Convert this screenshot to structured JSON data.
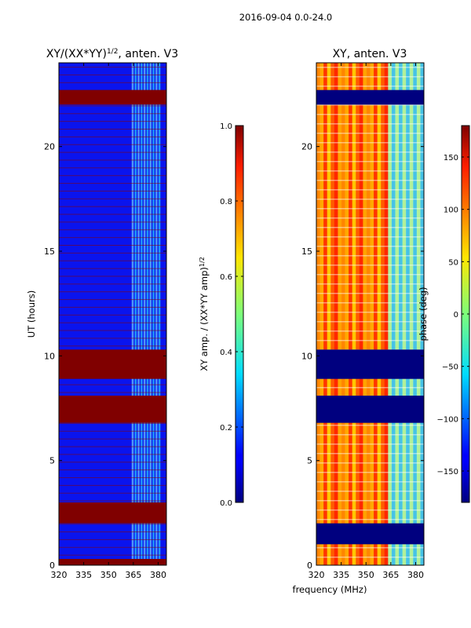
{
  "suptitle": "2016-09-04 0.0-24.0",
  "xlabel": "frequency (MHz)",
  "chart_data": [
    {
      "type": "heatmap",
      "title": "XY/(XX*YY)",
      "title_sup": "1/2",
      "title_suffix": ", anten. V3",
      "ylabel": "UT (hours)",
      "xlim": [
        320,
        385
      ],
      "ylim": [
        0,
        24
      ],
      "xticks": [
        "320",
        "335",
        "350",
        "365",
        "380"
      ],
      "xtick_values": [
        320,
        335,
        350,
        365,
        380
      ],
      "yticks": [
        "0",
        "5",
        "10",
        "15",
        "20"
      ],
      "ytick_values": [
        0,
        5,
        10,
        15,
        20
      ],
      "masked_bands_hours": [
        [
          0.0,
          0.3
        ],
        [
          2.0,
          3.0
        ],
        [
          6.8,
          8.1
        ],
        [
          8.9,
          10.3
        ],
        [
          22.0,
          22.7
        ]
      ],
      "colorbar": {
        "label": "XY amp. / (XX*YY amp)",
        "label_sup": "1/2",
        "ticks": [
          "0.0",
          "0.2",
          "0.4",
          "0.6",
          "0.8",
          "1.0"
        ],
        "tick_values": [
          0.0,
          0.2,
          0.4,
          0.6,
          0.8,
          1.0
        ],
        "range": [
          0,
          1
        ]
      }
    },
    {
      "type": "heatmap",
      "title": "XY, anten. V3",
      "xlim": [
        320,
        385
      ],
      "ylim": [
        0,
        24
      ],
      "xticks": [
        "320",
        "335",
        "350",
        "365",
        "380"
      ],
      "xtick_values": [
        320,
        335,
        350,
        365,
        380
      ],
      "yticks": [
        "0",
        "5",
        "10",
        "15",
        "20"
      ],
      "ytick_values": [
        0,
        5,
        10,
        15,
        20
      ],
      "masked_bands_hours": [
        [
          1.0,
          2.0
        ],
        [
          6.8,
          8.1
        ],
        [
          8.9,
          10.3
        ],
        [
          22.0,
          22.7
        ]
      ],
      "colorbar": {
        "label": "phase (deg)",
        "ticks": [
          "−150",
          "−100",
          "−50",
          "0",
          "50",
          "100",
          "150"
        ],
        "tick_values": [
          -150,
          -100,
          -50,
          0,
          50,
          100,
          150
        ],
        "range": [
          -180,
          180
        ]
      }
    }
  ]
}
